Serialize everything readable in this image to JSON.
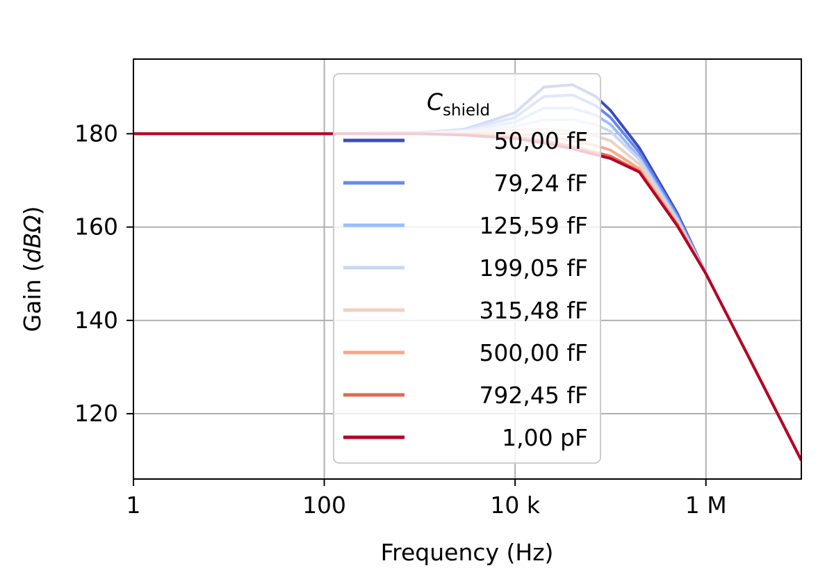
{
  "chart_data": {
    "type": "line",
    "xlabel": "Frequency (Hz)",
    "ylabel_prefix": "Gain (",
    "ylabel_var": "dBΩ",
    "ylabel_suffix": ")",
    "x_scale": "log",
    "xlim": [
      1,
      10000000
    ],
    "ylim": [
      106,
      196
    ],
    "x_ticks": [
      {
        "value": 1,
        "label": "1"
      },
      {
        "value": 100,
        "label": "100"
      },
      {
        "value": 10000,
        "label": "10 k"
      },
      {
        "value": 1000000,
        "label": "1 M"
      }
    ],
    "y_ticks": [
      {
        "value": 120,
        "label": "120"
      },
      {
        "value": 140,
        "label": "140"
      },
      {
        "value": 160,
        "label": "160"
      },
      {
        "value": 180,
        "label": "180"
      }
    ],
    "grid": true,
    "legend": {
      "title_main": "C",
      "title_sub": "shield",
      "placement": "upper-center"
    },
    "series": [
      {
        "name": "50,00 fF",
        "color": "#3b4cc0",
        "x": [
          1,
          100,
          1000,
          3000,
          10000,
          20000,
          40000,
          70000,
          100000,
          200000,
          500000,
          1000000,
          3000000,
          10000000
        ],
        "y": [
          180,
          180,
          180.2,
          181,
          184.5,
          190,
          190.5,
          188,
          185,
          177,
          163,
          150,
          131,
          110
        ]
      },
      {
        "name": "79,24 fF",
        "color": "#6788ee",
        "x": [
          1,
          100,
          1000,
          3000,
          10000,
          20000,
          40000,
          70000,
          100000,
          200000,
          500000,
          1000000,
          3000000,
          10000000
        ],
        "y": [
          180,
          180,
          180.2,
          180.8,
          183.5,
          188,
          188.3,
          186,
          183.5,
          176,
          162.5,
          150,
          131,
          110
        ]
      },
      {
        "name": "125,59 fF",
        "color": "#9abbff",
        "x": [
          1,
          100,
          1000,
          3000,
          10000,
          20000,
          40000,
          70000,
          100000,
          200000,
          500000,
          1000000,
          3000000,
          10000000
        ],
        "y": [
          180,
          180,
          180.1,
          180.6,
          182.5,
          185.5,
          185.5,
          184,
          182,
          175,
          162,
          150,
          131,
          110
        ]
      },
      {
        "name": "199,05 fF",
        "color": "#c9d7f0",
        "x": [
          1,
          100,
          1000,
          3000,
          10000,
          20000,
          40000,
          70000,
          100000,
          200000,
          500000,
          1000000,
          3000000,
          10000000
        ],
        "y": [
          180,
          180,
          180.1,
          180.4,
          181.5,
          183,
          183,
          182,
          180.5,
          174.5,
          161.5,
          150,
          131,
          110
        ]
      },
      {
        "name": "315,48 fF",
        "color": "#edd1c2",
        "x": [
          1,
          100,
          1000,
          3000,
          10000,
          20000,
          40000,
          70000,
          100000,
          200000,
          500000,
          1000000,
          3000000,
          10000000
        ],
        "y": [
          180,
          180,
          180,
          180.2,
          180.8,
          181,
          180.5,
          179.5,
          178.5,
          173.5,
          161,
          150,
          131,
          110
        ]
      },
      {
        "name": "500,00 fF",
        "color": "#f7a889",
        "x": [
          1,
          100,
          1000,
          3000,
          10000,
          20000,
          40000,
          70000,
          100000,
          200000,
          500000,
          1000000,
          3000000,
          10000000
        ],
        "y": [
          180,
          180,
          180,
          180,
          180,
          179.5,
          178.5,
          177.5,
          176.5,
          172.5,
          160.8,
          150,
          131,
          110
        ]
      },
      {
        "name": "792,45 fF",
        "color": "#e26952",
        "x": [
          1,
          100,
          1000,
          3000,
          10000,
          20000,
          40000,
          70000,
          100000,
          200000,
          500000,
          1000000,
          3000000,
          10000000
        ],
        "y": [
          180,
          180,
          180,
          179.8,
          179.3,
          178.5,
          177.3,
          176,
          175.2,
          172,
          160.5,
          150,
          131,
          110
        ]
      },
      {
        "name": "1,00 pF",
        "color": "#b40426",
        "x": [
          1,
          100,
          1000,
          3000,
          10000,
          20000,
          40000,
          70000,
          100000,
          200000,
          500000,
          1000000,
          3000000,
          10000000
        ],
        "y": [
          180,
          180,
          180,
          179.7,
          179,
          178,
          176.8,
          175.5,
          174.7,
          171.8,
          160.3,
          150,
          131,
          110
        ]
      }
    ]
  }
}
